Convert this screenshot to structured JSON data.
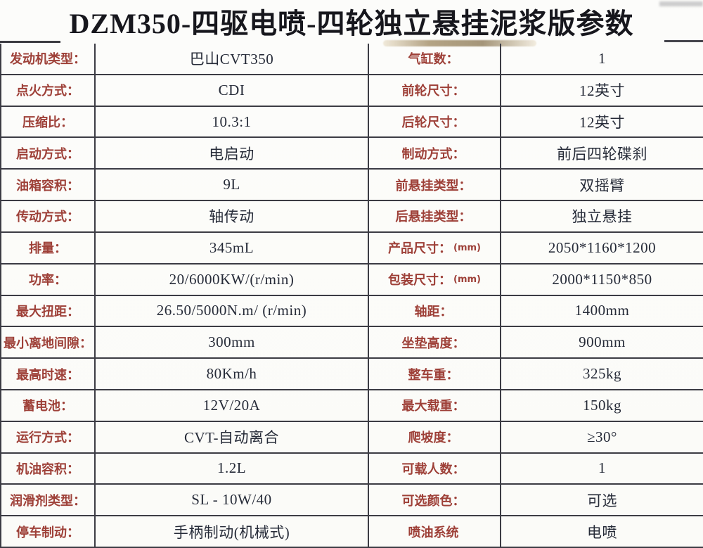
{
  "title": "DZM350-四驱电喷-四轮独立悬挂泥浆版参数",
  "colors": {
    "label_red": "#9e4038",
    "value_dark": "#262b38",
    "border": "#3c3c44",
    "background": "#fbfbf8"
  },
  "table": {
    "rows": [
      {
        "label_left": "发动机类型：",
        "value_left": "巴山CVT350",
        "label_right": "气缸数：",
        "value_right": "1"
      },
      {
        "label_left": "点火方式：",
        "value_left": "CDI",
        "label_right": "前轮尺寸：",
        "value_right": "12英寸"
      },
      {
        "label_left": "压缩比：",
        "value_left": "10.3:1",
        "label_right": "后轮尺寸：",
        "value_right": "12英寸"
      },
      {
        "label_left": "启动方式：",
        "value_left": "电启动",
        "label_right": "制动方式：",
        "value_right": "前后四轮碟刹"
      },
      {
        "label_left": "油箱容积：",
        "value_left": "9L",
        "label_right": "前悬挂类型：",
        "value_right": "双摇臂"
      },
      {
        "label_left": "传动方式：",
        "value_left": "轴传动",
        "label_right": "后悬挂类型：",
        "value_right": "独立悬挂"
      },
      {
        "label_left": "排量：",
        "value_left": "345mL",
        "label_right": "产品尺寸：",
        "label_right_suffix": "(mm)",
        "value_right": "2050*1160*1200"
      },
      {
        "label_left": "功率：",
        "value_left": "20/6000KW/(r/min)",
        "label_right": "包装尺寸：",
        "label_right_suffix": "(mm)",
        "value_right": "2000*1150*850"
      },
      {
        "label_left": "最大扭距：",
        "value_left": "26.50/5000N.m/ (r/min)",
        "label_right": "轴距：",
        "value_right": "1400mm"
      },
      {
        "label_left": "最小离地间隙：",
        "value_left": "300mm",
        "label_right": "坐垫高度：",
        "value_right": "900mm"
      },
      {
        "label_left": "最高时速：",
        "value_left": "80Km/h",
        "label_right": "整车重：",
        "value_right": "325kg"
      },
      {
        "label_left": "蓄电池：",
        "value_left": "12V/20A",
        "label_right": "最大载重：",
        "value_right": "150kg"
      },
      {
        "label_left": "运行方式：",
        "value_left": "CVT-自动离合",
        "label_right": "爬坡度：",
        "value_right": "≥30°"
      },
      {
        "label_left": "机油容积：",
        "value_left": "1.2L",
        "label_right": "可载人数：",
        "value_right": "1"
      },
      {
        "label_left": "润滑剂类型：",
        "value_left": "SL - 10W/40",
        "label_right": "可选颜色：",
        "value_right": "可选"
      },
      {
        "label_left": "停车制动：",
        "value_left": "手柄制动(机械式)",
        "label_right": "喷油系统",
        "value_right": "电喷"
      }
    ]
  }
}
